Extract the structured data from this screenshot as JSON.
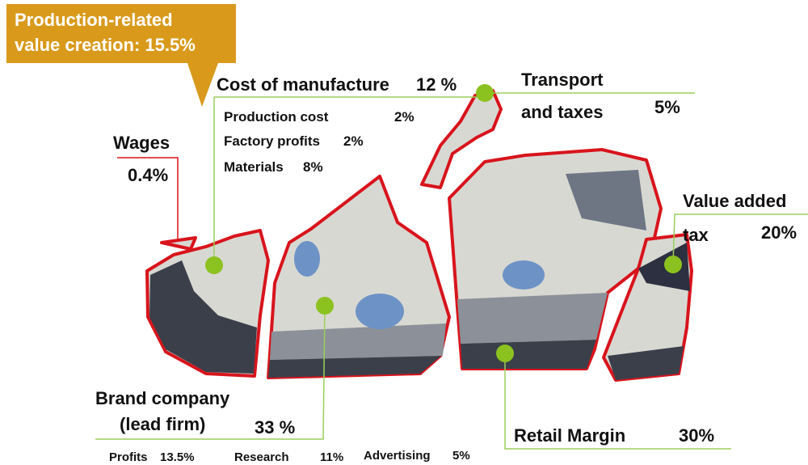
{
  "callout": {
    "lines": [
      "Production-related",
      "value creation: 15.5%"
    ]
  },
  "manufacture": {
    "label": "Cost of manufacture",
    "value": "12 %",
    "items": [
      {
        "label": "Production cost",
        "value": "2%"
      },
      {
        "label": "Factory profits",
        "value": "2%"
      },
      {
        "label": "Materials",
        "value": "8%"
      }
    ]
  },
  "transport": {
    "lines": [
      "Transport",
      "and taxes"
    ],
    "value": "5%"
  },
  "wages": {
    "label": "Wages",
    "value": "0.4%"
  },
  "vat": {
    "lines": [
      "Value added",
      "tax"
    ],
    "value": "20%"
  },
  "brand": {
    "lines": [
      "Brand company",
      "(lead firm)"
    ],
    "value": "33 %",
    "items": [
      {
        "label": "Profits",
        "value": "13.5%"
      },
      {
        "label": "Research",
        "value": "11%"
      },
      {
        "label": "Advertising",
        "value": "5%"
      }
    ]
  },
  "retail": {
    "label": "Retail Margin",
    "value": "30%"
  }
}
